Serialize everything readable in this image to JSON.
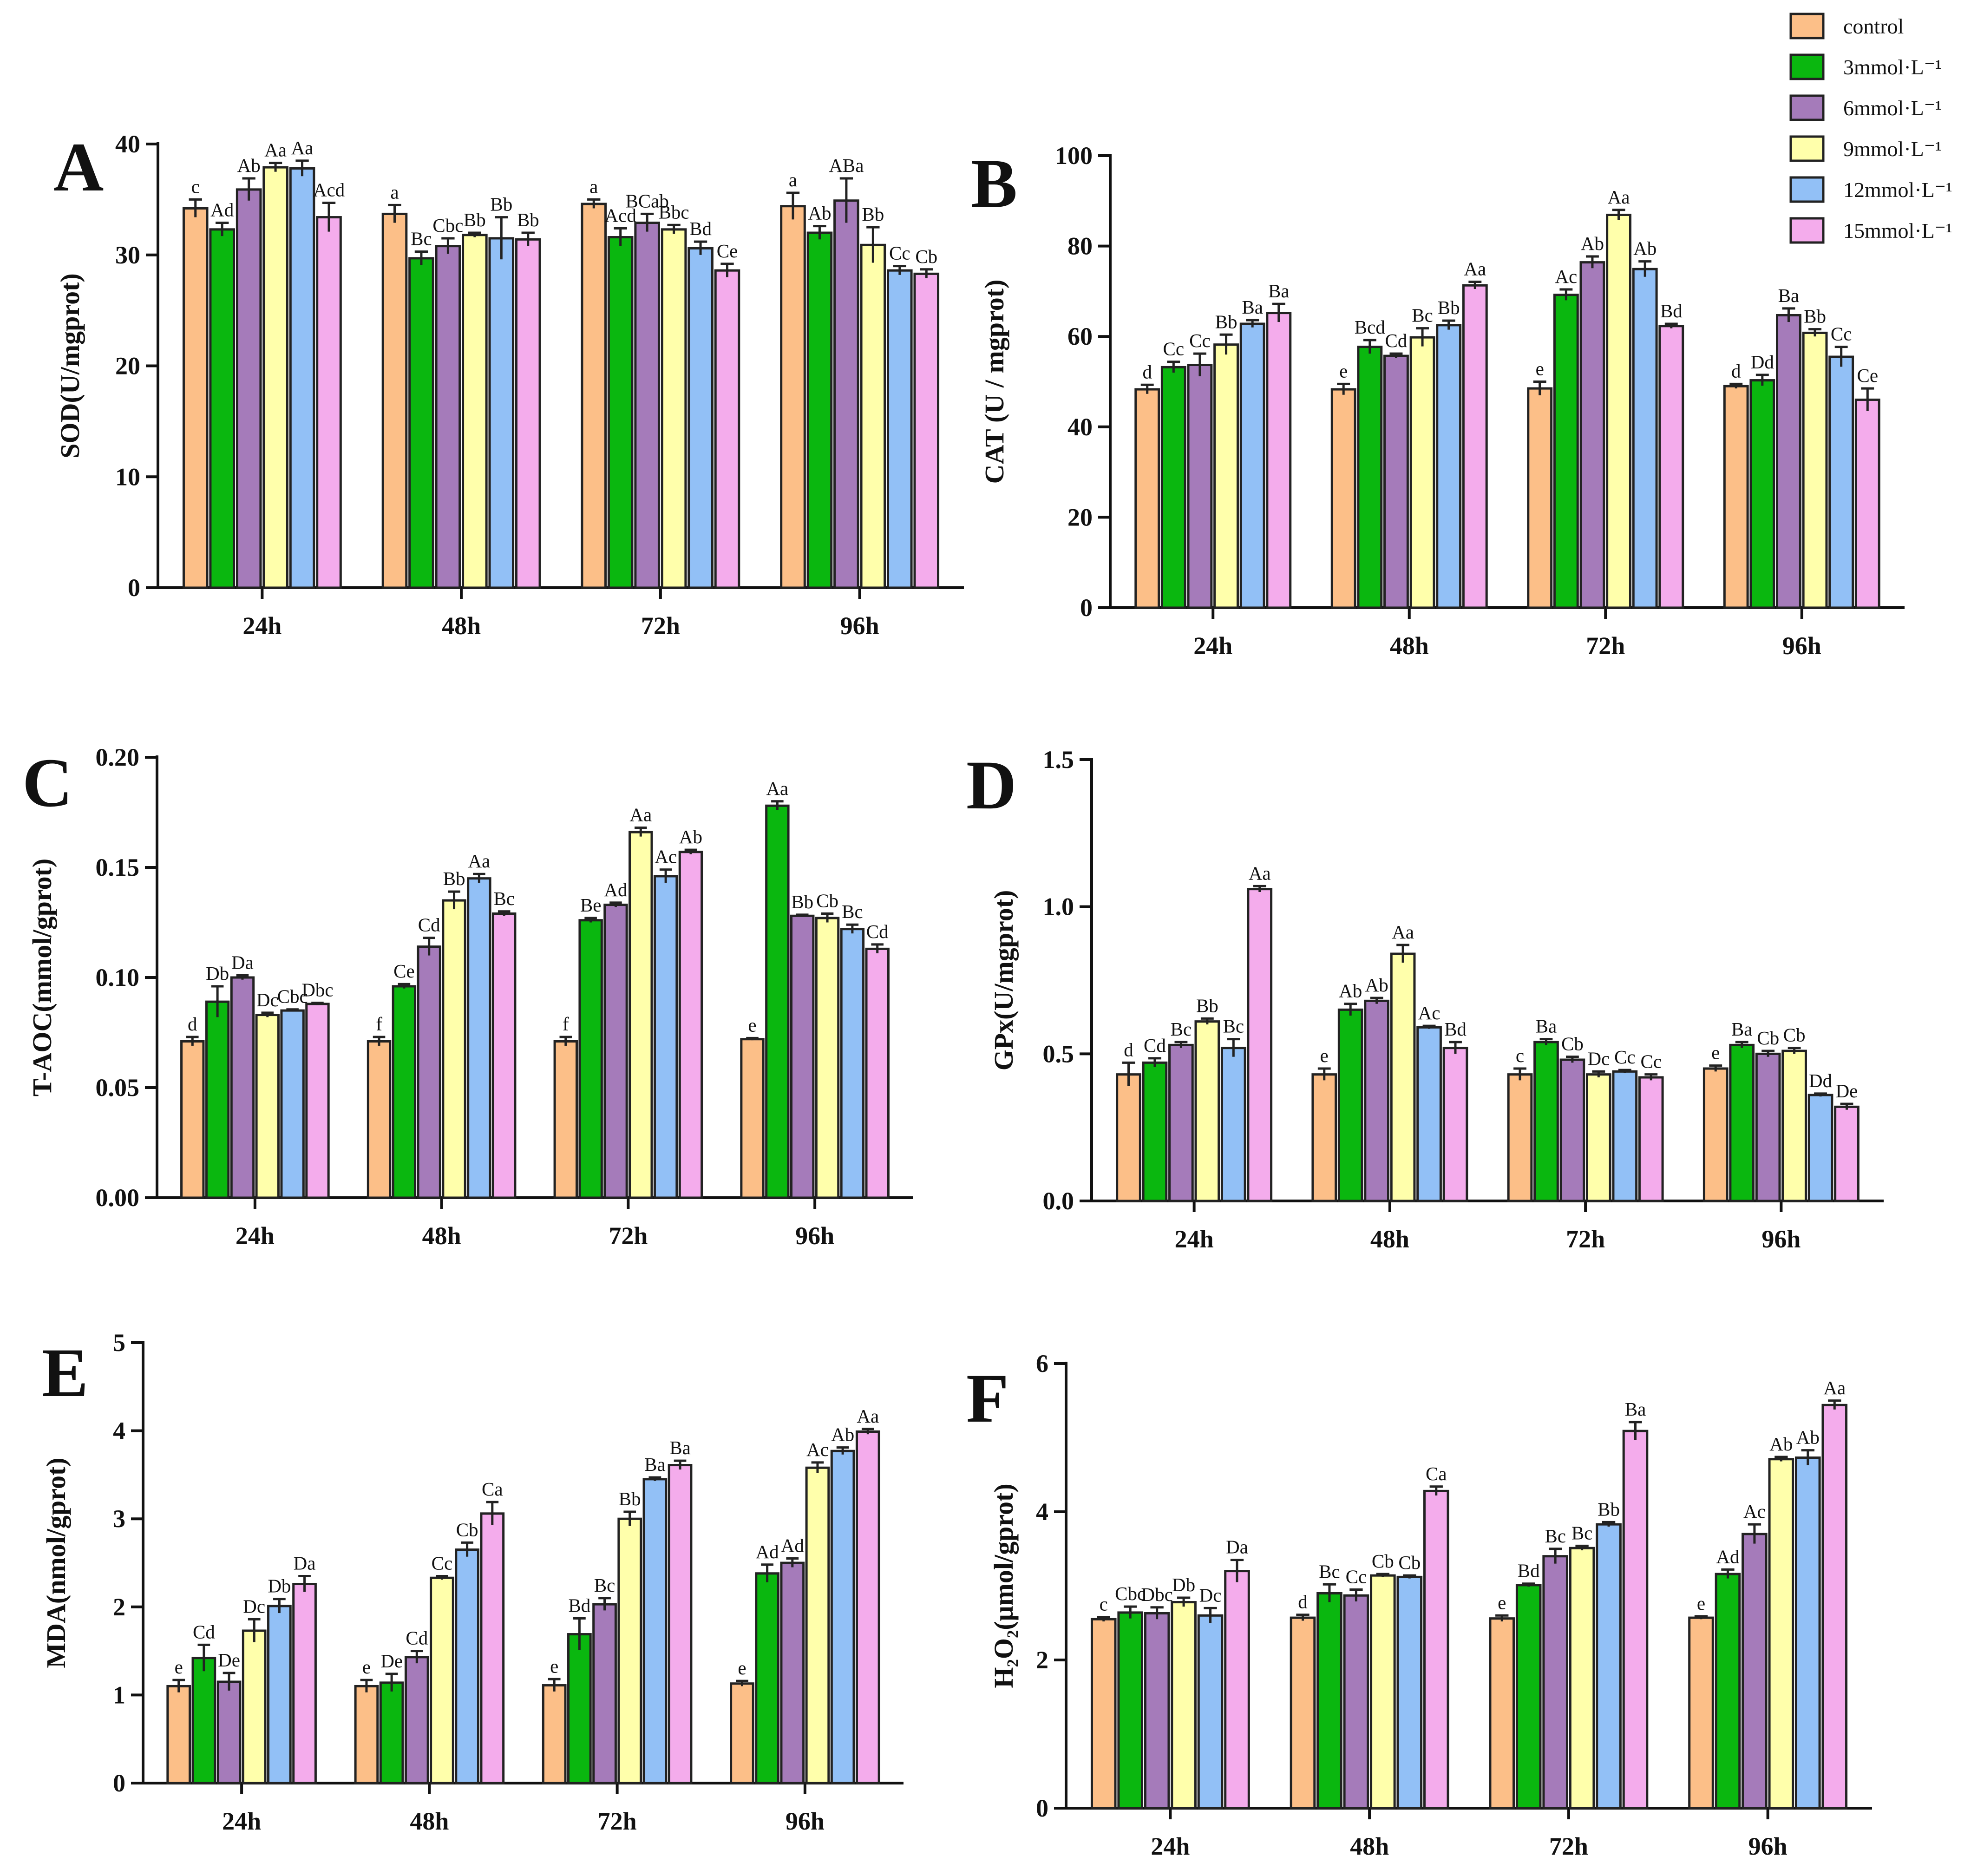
{
  "legend": {
    "entries": [
      {
        "label": "control",
        "color": "#fcbf88"
      },
      {
        "label": "3mmol·L⁻¹",
        "color": "#0ab70f"
      },
      {
        "label": "6mmol·L⁻¹",
        "color": "#a57bba"
      },
      {
        "label": "9mmol·L⁻¹",
        "color": "#ffffab"
      },
      {
        "label": "12mmol·L⁻¹",
        "color": "#92c0f6"
      },
      {
        "label": "15mmol·L⁻¹",
        "color": "#f4acec"
      }
    ]
  },
  "chart_data": [
    {
      "panel": "A",
      "type": "bar",
      "ylabel": "SOD(U/mgprot)",
      "categories": [
        "24h",
        "48h",
        "72h",
        "96h"
      ],
      "ylim": [
        0,
        40
      ],
      "yticks": [
        "0",
        "10",
        "20",
        "30",
        "40"
      ],
      "series": [
        {
          "name": "control",
          "values": [
            34.2,
            33.7,
            34.6,
            34.4
          ],
          "errors": [
            0.8,
            0.8,
            0.4,
            1.2
          ],
          "labels": [
            "c",
            "a",
            "a",
            "a"
          ]
        },
        {
          "name": "3mmol·L⁻¹",
          "values": [
            32.3,
            29.7,
            31.6,
            32.0
          ],
          "errors": [
            0.6,
            0.6,
            0.8,
            0.6
          ],
          "labels": [
            "Ad",
            "Bc",
            "Acd",
            "Ab"
          ]
        },
        {
          "name": "6mmol·L⁻¹",
          "values": [
            35.9,
            30.8,
            32.9,
            34.9
          ],
          "errors": [
            1.0,
            0.7,
            0.8,
            2.0
          ],
          "labels": [
            "Ab",
            "Cbc",
            "BCab",
            "ABa"
          ]
        },
        {
          "name": "9mmol·L⁻¹",
          "values": [
            37.9,
            31.8,
            32.3,
            30.9
          ],
          "errors": [
            0.4,
            0.2,
            0.4,
            1.6
          ],
          "labels": [
            "Aa",
            "Bb",
            "Bbc",
            "Bb"
          ]
        },
        {
          "name": "12mmol·L⁻¹",
          "values": [
            37.8,
            31.5,
            30.6,
            28.6
          ],
          "errors": [
            0.7,
            1.9,
            0.6,
            0.4
          ],
          "labels": [
            "Aa",
            "Bb",
            "Bd",
            "Cc"
          ]
        },
        {
          "name": "15mmol·L⁻¹",
          "values": [
            33.4,
            31.4,
            28.6,
            28.3
          ],
          "errors": [
            1.3,
            0.6,
            0.6,
            0.4
          ],
          "labels": [
            "Acd",
            "Bb",
            "Ce",
            "Cb"
          ]
        }
      ]
    },
    {
      "panel": "B",
      "type": "bar",
      "ylabel": "CAT (U / mgprot)",
      "categories": [
        "24h",
        "48h",
        "72h",
        "96h"
      ],
      "ylim": [
        0,
        100
      ],
      "yticks": [
        "0",
        "20",
        "40",
        "60",
        "80",
        "100"
      ],
      "series": [
        {
          "name": "control",
          "values": [
            48.3,
            48.3,
            48.5,
            49.0
          ],
          "errors": [
            1.0,
            1.2,
            1.5,
            0.5
          ],
          "labels": [
            "d",
            "e",
            "e",
            "d"
          ]
        },
        {
          "name": "3mmol·L⁻¹",
          "values": [
            53.2,
            57.7,
            69.2,
            50.3
          ],
          "errors": [
            1.2,
            1.5,
            1.2,
            1.2
          ],
          "labels": [
            "Cc",
            "Bcd",
            "Ac",
            "Dd"
          ]
        },
        {
          "name": "6mmol·L⁻¹",
          "values": [
            53.7,
            55.7,
            76.4,
            64.7
          ],
          "errors": [
            2.5,
            0.5,
            1.3,
            1.5
          ],
          "labels": [
            "Cc",
            "Cd",
            "Ab",
            "Ba"
          ]
        },
        {
          "name": "9mmol·L⁻¹",
          "values": [
            58.2,
            59.8,
            86.9,
            60.8
          ],
          "errors": [
            2.2,
            2.0,
            1.1,
            0.8
          ],
          "labels": [
            "Bb",
            "Bc",
            "Aa",
            "Bb"
          ]
        },
        {
          "name": "12mmol·L⁻¹",
          "values": [
            62.8,
            62.5,
            74.9,
            55.5
          ],
          "errors": [
            0.8,
            1.0,
            1.7,
            2.2
          ],
          "labels": [
            "Ba",
            "Bb",
            "Ab",
            "Cc"
          ]
        },
        {
          "name": "15mmol·L⁻¹",
          "values": [
            65.2,
            71.3,
            62.3,
            46.0
          ],
          "errors": [
            2.0,
            0.8,
            0.5,
            2.5
          ],
          "labels": [
            "Ba",
            "Aa",
            "Bd",
            "Ce"
          ]
        }
      ]
    },
    {
      "panel": "C",
      "type": "bar",
      "ylabel": "T-AOC(mmol/gprot)",
      "categories": [
        "24h",
        "48h",
        "72h",
        "96h"
      ],
      "ylim": [
        0,
        0.2
      ],
      "yticks": [
        "0.00",
        "0.05",
        "0.10",
        "0.15",
        "0.20"
      ],
      "series": [
        {
          "name": "control",
          "values": [
            0.071,
            0.071,
            0.071,
            0.072
          ],
          "errors": [
            0.002,
            0.002,
            0.002,
            0.0005
          ],
          "labels": [
            "d",
            "f",
            "f",
            "e"
          ]
        },
        {
          "name": "3mmol·L⁻¹",
          "values": [
            0.089,
            0.096,
            0.126,
            0.178
          ],
          "errors": [
            0.007,
            0.001,
            0.001,
            0.002
          ],
          "labels": [
            "Db",
            "Ce",
            "Be",
            "Aa"
          ]
        },
        {
          "name": "6mmol·L⁻¹",
          "values": [
            0.1,
            0.114,
            0.133,
            0.128
          ],
          "errors": [
            0.001,
            0.004,
            0.001,
            0.0005
          ],
          "labels": [
            "Da",
            "Cd",
            "Ad",
            "Bb"
          ]
        },
        {
          "name": "9mmol·L⁻¹",
          "values": [
            0.083,
            0.135,
            0.166,
            0.127
          ],
          "errors": [
            0.001,
            0.004,
            0.002,
            0.002
          ],
          "labels": [
            "Dc",
            "Bb",
            "Aa",
            "Cb"
          ]
        },
        {
          "name": "12mmol·L⁻¹",
          "values": [
            0.085,
            0.145,
            0.146,
            0.122
          ],
          "errors": [
            0.0005,
            0.002,
            0.003,
            0.002
          ],
          "labels": [
            "Cbc",
            "Aa",
            "Ac",
            "Bc"
          ]
        },
        {
          "name": "15mmol·L⁻¹",
          "values": [
            0.088,
            0.129,
            0.157,
            0.113
          ],
          "errors": [
            0.0005,
            0.001,
            0.001,
            0.002
          ],
          "labels": [
            "Dbc",
            "Bc",
            "Ab",
            "Cd"
          ]
        }
      ]
    },
    {
      "panel": "D",
      "type": "bar",
      "ylabel": "GPx(U/mgprot)",
      "categories": [
        "24h",
        "48h",
        "72h",
        "96h"
      ],
      "ylim": [
        0,
        1.5
      ],
      "yticks": [
        "0.0",
        "0.5",
        "1.0",
        "1.5"
      ],
      "series": [
        {
          "name": "control",
          "values": [
            0.43,
            0.43,
            0.43,
            0.45
          ],
          "errors": [
            0.04,
            0.02,
            0.02,
            0.01
          ],
          "labels": [
            "d",
            "e",
            "c",
            "e"
          ]
        },
        {
          "name": "3mmol·L⁻¹",
          "values": [
            0.47,
            0.65,
            0.54,
            0.53
          ],
          "errors": [
            0.015,
            0.02,
            0.01,
            0.01
          ],
          "labels": [
            "Cd",
            "Ab",
            "Ba",
            "Ba"
          ]
        },
        {
          "name": "6mmol·L⁻¹",
          "values": [
            0.53,
            0.68,
            0.48,
            0.5
          ],
          "errors": [
            0.01,
            0.01,
            0.01,
            0.01
          ],
          "labels": [
            "Bc",
            "Ab",
            "Cb",
            "Cb"
          ]
        },
        {
          "name": "9mmol·L⁻¹",
          "values": [
            0.61,
            0.84,
            0.43,
            0.51
          ],
          "errors": [
            0.01,
            0.03,
            0.01,
            0.01
          ],
          "labels": [
            "Bb",
            "Aa",
            "Dc",
            "Cb"
          ]
        },
        {
          "name": "12mmol·L⁻¹",
          "values": [
            0.52,
            0.59,
            0.44,
            0.36
          ],
          "errors": [
            0.03,
            0.005,
            0.005,
            0.005
          ],
          "labels": [
            "Bc",
            "Ac",
            "Cc",
            "Dd"
          ]
        },
        {
          "name": "15mmol·L⁻¹",
          "values": [
            1.06,
            0.52,
            0.42,
            0.32
          ],
          "errors": [
            0.01,
            0.02,
            0.01,
            0.01
          ],
          "labels": [
            "Aa",
            "Bd",
            "Cc",
            "De"
          ]
        }
      ]
    },
    {
      "panel": "E",
      "type": "bar",
      "ylabel": "MDA(nmol/gprot)",
      "categories": [
        "24h",
        "48h",
        "72h",
        "96h"
      ],
      "ylim": [
        0,
        5
      ],
      "yticks": [
        "0",
        "1",
        "2",
        "3",
        "4",
        "5"
      ],
      "series": [
        {
          "name": "control",
          "values": [
            1.1,
            1.1,
            1.11,
            1.13
          ],
          "errors": [
            0.07,
            0.07,
            0.07,
            0.03
          ],
          "labels": [
            "e",
            "e",
            "e",
            "e"
          ]
        },
        {
          "name": "3mmol·L⁻¹",
          "values": [
            1.42,
            1.14,
            1.69,
            2.38
          ],
          "errors": [
            0.15,
            0.1,
            0.18,
            0.1
          ],
          "labels": [
            "Cd",
            "De",
            "Bd",
            "Ad"
          ]
        },
        {
          "name": "6mmol·L⁻¹",
          "values": [
            1.15,
            1.43,
            2.03,
            2.5
          ],
          "errors": [
            0.1,
            0.07,
            0.07,
            0.05
          ],
          "labels": [
            "De",
            "Cd",
            "Bc",
            "Ad"
          ]
        },
        {
          "name": "9mmol·L⁻¹",
          "values": [
            1.73,
            2.33,
            3.0,
            3.58
          ],
          "errors": [
            0.13,
            0.02,
            0.08,
            0.06
          ],
          "labels": [
            "Dc",
            "Cc",
            "Bb",
            "Ac"
          ]
        },
        {
          "name": "12mmol·L⁻¹",
          "values": [
            2.01,
            2.65,
            3.45,
            3.77
          ],
          "errors": [
            0.08,
            0.08,
            0.02,
            0.04
          ],
          "labels": [
            "Db",
            "Cb",
            "Ba",
            "Ab"
          ]
        },
        {
          "name": "15mmol·L⁻¹",
          "values": [
            2.26,
            3.06,
            3.61,
            3.99
          ],
          "errors": [
            0.09,
            0.13,
            0.05,
            0.03
          ],
          "labels": [
            "Da",
            "Ca",
            "Ba",
            "Aa"
          ]
        }
      ]
    },
    {
      "panel": "F",
      "type": "bar",
      "ylabel": "H₂O₂(μmol/gprot)",
      "categories": [
        "24h",
        "48h",
        "72h",
        "96h"
      ],
      "ylim": [
        0,
        6
      ],
      "yticks": [
        "0",
        "2",
        "4",
        "6"
      ],
      "series": [
        {
          "name": "control",
          "values": [
            2.55,
            2.57,
            2.56,
            2.57
          ],
          "errors": [
            0.03,
            0.04,
            0.04,
            0.02
          ],
          "labels": [
            "c",
            "d",
            "e",
            "e"
          ]
        },
        {
          "name": "3mmol·L⁻¹",
          "values": [
            2.64,
            2.9,
            3.01,
            3.16
          ],
          "errors": [
            0.08,
            0.12,
            0.02,
            0.06
          ],
          "labels": [
            "Cbc",
            "Bc",
            "Bd",
            "Ad"
          ]
        },
        {
          "name": "6mmol·L⁻¹",
          "values": [
            2.63,
            2.87,
            3.4,
            3.7
          ],
          "errors": [
            0.08,
            0.08,
            0.1,
            0.13
          ],
          "labels": [
            "Dbc",
            "Cc",
            "Bc",
            "Ac"
          ]
        },
        {
          "name": "9mmol·L⁻¹",
          "values": [
            2.78,
            3.14,
            3.51,
            4.71
          ],
          "errors": [
            0.06,
            0.02,
            0.03,
            0.03
          ],
          "labels": [
            "Db",
            "Cb",
            "Bc",
            "Ab"
          ]
        },
        {
          "name": "12mmol·L⁻¹",
          "values": [
            2.6,
            3.12,
            3.83,
            4.73
          ],
          "errors": [
            0.1,
            0.02,
            0.03,
            0.1
          ],
          "labels": [
            "Dc",
            "Cb",
            "Bb",
            "Ab"
          ]
        },
        {
          "name": "15mmol·L⁻¹",
          "values": [
            3.2,
            4.28,
            5.09,
            5.44
          ],
          "errors": [
            0.15,
            0.06,
            0.12,
            0.06
          ],
          "labels": [
            "Da",
            "Ca",
            "Ba",
            "Aa"
          ]
        }
      ]
    }
  ]
}
